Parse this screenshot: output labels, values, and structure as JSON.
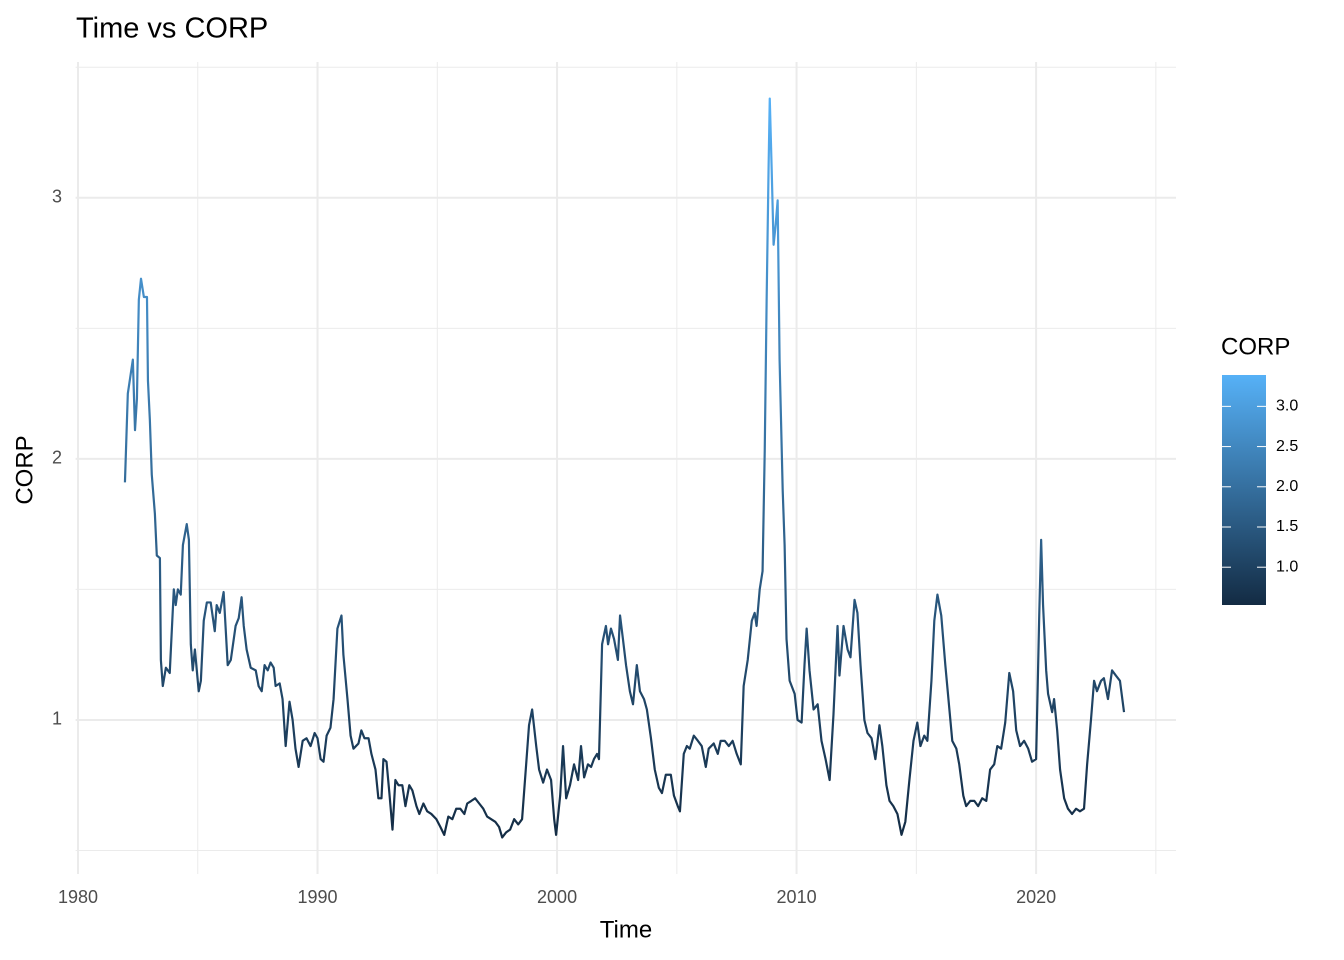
{
  "chart_data": {
    "type": "line",
    "title": "Time vs CORP",
    "xlabel": "Time",
    "ylabel": "CORP",
    "x": [
      1981.96,
      1982.08,
      1982.29,
      1982.38,
      1982.46,
      1982.54,
      1982.63,
      1982.75,
      1982.88,
      1982.92,
      1983.0,
      1983.08,
      1983.21,
      1983.29,
      1983.42,
      1983.46,
      1983.54,
      1983.67,
      1983.83,
      1984.0,
      1984.08,
      1984.17,
      1984.29,
      1984.38,
      1984.54,
      1984.63,
      1984.71,
      1984.79,
      1984.88,
      1985.04,
      1985.13,
      1985.25,
      1985.38,
      1985.54,
      1985.71,
      1985.79,
      1985.92,
      1986.08,
      1986.25,
      1986.38,
      1986.58,
      1986.71,
      1986.83,
      1986.92,
      1987.04,
      1987.21,
      1987.42,
      1987.54,
      1987.67,
      1987.79,
      1987.92,
      1988.04,
      1988.17,
      1988.25,
      1988.42,
      1988.54,
      1988.67,
      1988.83,
      1988.96,
      1989.08,
      1989.21,
      1989.38,
      1989.54,
      1989.71,
      1989.88,
      1990.0,
      1990.13,
      1990.25,
      1990.38,
      1990.54,
      1990.67,
      1990.83,
      1991.0,
      1991.08,
      1991.25,
      1991.38,
      1991.5,
      1991.71,
      1991.83,
      1991.96,
      1992.13,
      1992.25,
      1992.42,
      1992.54,
      1992.67,
      1992.75,
      1992.88,
      1993.0,
      1993.13,
      1993.25,
      1993.38,
      1993.54,
      1993.67,
      1993.83,
      1993.96,
      1994.13,
      1994.25,
      1994.42,
      1994.58,
      1994.75,
      1994.96,
      1995.13,
      1995.29,
      1995.46,
      1995.63,
      1995.79,
      1995.96,
      1996.13,
      1996.25,
      1996.42,
      1996.58,
      1996.75,
      1996.92,
      1997.08,
      1997.25,
      1997.42,
      1997.58,
      1997.71,
      1997.88,
      1998.04,
      1998.21,
      1998.38,
      1998.54,
      1998.71,
      1998.83,
      1998.96,
      1999.13,
      1999.25,
      1999.42,
      1999.58,
      1999.75,
      1999.88,
      1999.96,
      2000.13,
      2000.25,
      2000.38,
      2000.54,
      2000.71,
      2000.88,
      2001.0,
      2001.13,
      2001.29,
      2001.42,
      2001.54,
      2001.67,
      2001.75,
      2001.88,
      2002.04,
      2002.13,
      2002.25,
      2002.38,
      2002.54,
      2002.63,
      2002.75,
      2002.88,
      2003.04,
      2003.17,
      2003.33,
      2003.46,
      2003.63,
      2003.75,
      2003.92,
      2004.08,
      2004.25,
      2004.38,
      2004.54,
      2004.75,
      2004.88,
      2005.04,
      2005.13,
      2005.29,
      2005.42,
      2005.54,
      2005.71,
      2005.88,
      2006.04,
      2006.21,
      2006.33,
      2006.54,
      2006.71,
      2006.83,
      2007.0,
      2007.17,
      2007.33,
      2007.5,
      2007.67,
      2007.79,
      2007.96,
      2008.13,
      2008.25,
      2008.33,
      2008.46,
      2008.58,
      2008.67,
      2008.75,
      2008.83,
      2008.88,
      2008.96,
      2009.04,
      2009.13,
      2009.21,
      2009.29,
      2009.42,
      2009.5,
      2009.58,
      2009.71,
      2009.92,
      2010.04,
      2010.21,
      2010.33,
      2010.42,
      2010.54,
      2010.71,
      2010.88,
      2011.04,
      2011.21,
      2011.38,
      2011.54,
      2011.71,
      2011.79,
      2011.96,
      2012.13,
      2012.25,
      2012.42,
      2012.54,
      2012.67,
      2012.83,
      2012.96,
      2013.13,
      2013.29,
      2013.46,
      2013.58,
      2013.75,
      2013.88,
      2014.04,
      2014.21,
      2014.38,
      2014.54,
      2014.71,
      2014.88,
      2015.04,
      2015.17,
      2015.33,
      2015.46,
      2015.63,
      2015.75,
      2015.88,
      2016.04,
      2016.21,
      2016.38,
      2016.5,
      2016.67,
      2016.79,
      2016.96,
      2017.08,
      2017.25,
      2017.42,
      2017.58,
      2017.75,
      2017.92,
      2018.08,
      2018.25,
      2018.38,
      2018.54,
      2018.71,
      2018.88,
      2019.04,
      2019.17,
      2019.33,
      2019.5,
      2019.67,
      2019.83,
      2020.0,
      2020.13,
      2020.21,
      2020.29,
      2020.42,
      2020.5,
      2020.67,
      2020.75,
      2020.88,
      2021.0,
      2021.17,
      2021.33,
      2021.5,
      2021.67,
      2021.83,
      2022.0,
      2022.13,
      2022.29,
      2022.42,
      2022.54,
      2022.71,
      2022.83,
      2023.0,
      2023.17,
      2023.33,
      2023.5,
      2023.67
    ],
    "values": [
      1.91,
      2.25,
      2.38,
      2.11,
      2.23,
      2.61,
      2.69,
      2.62,
      2.62,
      2.3,
      2.15,
      1.94,
      1.79,
      1.63,
      1.62,
      1.23,
      1.13,
      1.2,
      1.18,
      1.5,
      1.44,
      1.5,
      1.48,
      1.67,
      1.75,
      1.69,
      1.29,
      1.19,
      1.27,
      1.11,
      1.15,
      1.38,
      1.45,
      1.45,
      1.34,
      1.44,
      1.41,
      1.49,
      1.21,
      1.23,
      1.36,
      1.39,
      1.47,
      1.36,
      1.27,
      1.2,
      1.19,
      1.13,
      1.11,
      1.21,
      1.19,
      1.22,
      1.2,
      1.13,
      1.14,
      1.08,
      0.9,
      1.07,
      1.0,
      0.89,
      0.82,
      0.92,
      0.93,
      0.9,
      0.95,
      0.93,
      0.85,
      0.84,
      0.94,
      0.97,
      1.08,
      1.35,
      1.4,
      1.25,
      1.08,
      0.94,
      0.89,
      0.91,
      0.96,
      0.93,
      0.93,
      0.87,
      0.81,
      0.7,
      0.7,
      0.85,
      0.84,
      0.72,
      0.58,
      0.77,
      0.75,
      0.75,
      0.67,
      0.75,
      0.73,
      0.67,
      0.64,
      0.68,
      0.65,
      0.64,
      0.62,
      0.59,
      0.56,
      0.63,
      0.62,
      0.66,
      0.66,
      0.64,
      0.68,
      0.69,
      0.7,
      0.68,
      0.66,
      0.63,
      0.62,
      0.61,
      0.59,
      0.55,
      0.57,
      0.58,
      0.62,
      0.6,
      0.62,
      0.83,
      0.98,
      1.04,
      0.9,
      0.81,
      0.76,
      0.81,
      0.77,
      0.62,
      0.56,
      0.71,
      0.9,
      0.7,
      0.75,
      0.83,
      0.77,
      0.9,
      0.78,
      0.83,
      0.82,
      0.85,
      0.87,
      0.85,
      1.29,
      1.36,
      1.29,
      1.35,
      1.31,
      1.23,
      1.4,
      1.31,
      1.21,
      1.11,
      1.06,
      1.21,
      1.11,
      1.08,
      1.04,
      0.93,
      0.81,
      0.74,
      0.72,
      0.79,
      0.79,
      0.71,
      0.67,
      0.65,
      0.87,
      0.9,
      0.89,
      0.94,
      0.92,
      0.9,
      0.82,
      0.89,
      0.91,
      0.87,
      0.92,
      0.92,
      0.9,
      0.92,
      0.87,
      0.83,
      1.13,
      1.23,
      1.38,
      1.41,
      1.36,
      1.5,
      1.57,
      2.03,
      2.61,
      3.11,
      3.38,
      3.11,
      2.82,
      2.9,
      2.99,
      2.38,
      1.88,
      1.67,
      1.31,
      1.15,
      1.1,
      1.0,
      0.99,
      1.21,
      1.35,
      1.19,
      1.04,
      1.06,
      0.92,
      0.85,
      0.77,
      1.02,
      1.36,
      1.17,
      1.36,
      1.27,
      1.24,
      1.46,
      1.41,
      1.21,
      1.0,
      0.95,
      0.93,
      0.85,
      0.98,
      0.9,
      0.75,
      0.69,
      0.67,
      0.64,
      0.56,
      0.61,
      0.77,
      0.92,
      0.99,
      0.9,
      0.94,
      0.92,
      1.15,
      1.38,
      1.48,
      1.4,
      1.21,
      1.04,
      0.92,
      0.89,
      0.83,
      0.71,
      0.67,
      0.69,
      0.69,
      0.67,
      0.7,
      0.69,
      0.81,
      0.83,
      0.9,
      0.89,
      0.99,
      1.18,
      1.11,
      0.96,
      0.9,
      0.92,
      0.89,
      0.84,
      0.85,
      1.4,
      1.69,
      1.44,
      1.19,
      1.1,
      1.03,
      1.08,
      0.96,
      0.81,
      0.7,
      0.66,
      0.64,
      0.66,
      0.65,
      0.66,
      0.83,
      1.0,
      1.15,
      1.11,
      1.15,
      1.16,
      1.08,
      1.19,
      1.17,
      1.15,
      1.03
    ],
    "xlim": [
      1979.9,
      2025.84
    ],
    "ylim": [
      0.41,
      3.52
    ],
    "xticks": [
      1980,
      1990,
      2000,
      2010,
      2020
    ],
    "yticks": [
      1,
      2,
      3
    ],
    "xminor": [
      1985,
      1995,
      2005,
      2015,
      2025
    ],
    "yminor": [
      0.5,
      1.5,
      2.5,
      3.5
    ],
    "grid": true,
    "legend": {
      "title": "CORP",
      "position": "right",
      "limits": [
        0.53,
        3.39
      ],
      "colors": [
        "#132B43",
        "#56B1F7"
      ],
      "ticks": [
        {
          "value": 1,
          "label": "1.0"
        },
        {
          "value": 1.5,
          "label": "1.5"
        },
        {
          "value": 2,
          "label": "2.0"
        },
        {
          "value": 2.5,
          "label": "2.5"
        },
        {
          "value": 3,
          "label": "3.0"
        }
      ]
    }
  }
}
